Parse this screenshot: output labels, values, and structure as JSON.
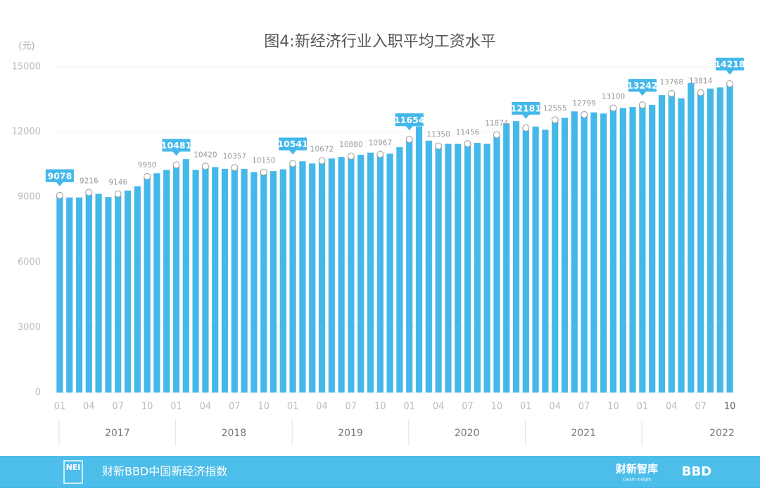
{
  "chart_data": {
    "type": "bar",
    "title": "图4:新经济行业入职平均工资水平",
    "y_unit": "(元)",
    "categories": [
      "01",
      null,
      null,
      "04",
      null,
      null,
      "07",
      null,
      null,
      "10",
      null,
      null,
      "01",
      null,
      null,
      "04",
      null,
      null,
      "07",
      null,
      null,
      "10",
      null,
      null,
      "01",
      null,
      null,
      "04",
      null,
      null,
      "07",
      null,
      null,
      "10",
      null,
      null,
      "01",
      null,
      null,
      "04",
      null,
      null,
      "07",
      null,
      null,
      "10",
      null,
      null,
      "01",
      null,
      null,
      "04",
      null,
      null,
      "07",
      null,
      null,
      "10",
      null,
      null,
      "01",
      null,
      null,
      "04",
      null,
      null,
      "07",
      null,
      null,
      "10"
    ],
    "values": [
      9078,
      8980,
      8980,
      9216,
      9150,
      9000,
      9146,
      9300,
      9500,
      9950,
      10100,
      10250,
      10481,
      10750,
      10250,
      10420,
      10380,
      10300,
      10357,
      10300,
      10150,
      10150,
      10200,
      10280,
      10541,
      10650,
      10550,
      10672,
      10780,
      10850,
      10880,
      10950,
      11050,
      10967,
      11000,
      11300,
      11654,
      12250,
      11600,
      11350,
      11450,
      11450,
      11456,
      11500,
      11450,
      11874,
      12400,
      12500,
      12181,
      12250,
      12100,
      12555,
      12650,
      12950,
      12799,
      12900,
      12850,
      13100,
      13100,
      13150,
      13242,
      13250,
      13700,
      13768,
      13550,
      14250,
      13814,
      14000,
      14050,
      14218
    ],
    "labeled_points": [
      3,
      6,
      9,
      15,
      18,
      21,
      27,
      30,
      33,
      39,
      42,
      45,
      51,
      54,
      57,
      63,
      66
    ],
    "highlighted_points": [
      0,
      12,
      24,
      36,
      48,
      60,
      69
    ],
    "years": [
      "2017",
      "2018",
      "2019",
      "2020",
      "2021",
      "2022"
    ],
    "color": "#45b8ea",
    "ylim": [
      0,
      15000
    ],
    "yticks": [
      0,
      3000,
      6000,
      9000,
      12000,
      15000
    ],
    "grid": true
  },
  "footer": {
    "logo": "NEI",
    "index_name": "财新BBD中国新经济指数",
    "brand": "财新智库",
    "brand_sub": "Caixin Insight",
    "partner": "BBD"
  }
}
